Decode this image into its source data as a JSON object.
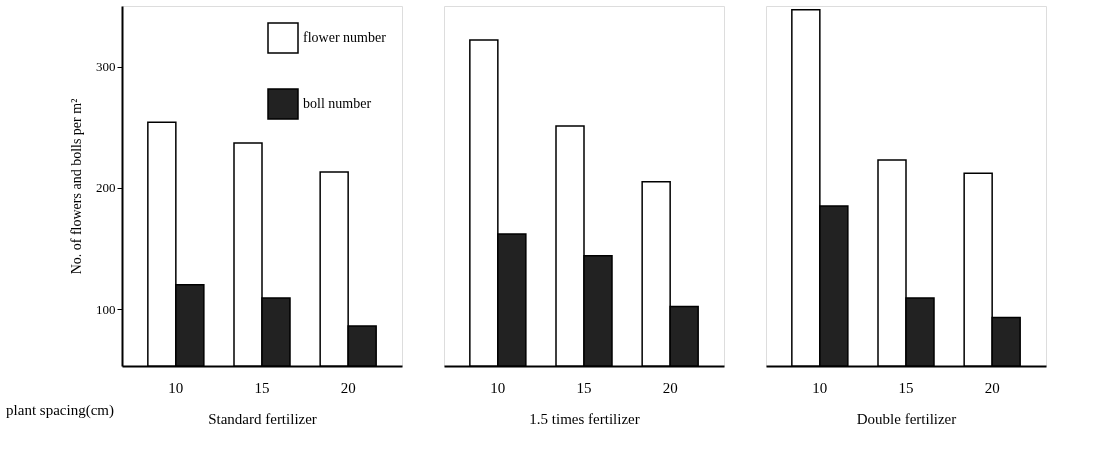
{
  "chart_data": [
    {
      "type": "bar",
      "xlabel": "Standard fertilizer",
      "ylabel": "No. of flowers and bolls per m²",
      "categories": [
        "10",
        "15",
        "20"
      ],
      "series": [
        {
          "name": "flower number",
          "color": "#ffffff",
          "values": [
            254,
            237,
            213
          ]
        },
        {
          "name": "boll number",
          "color": "#222222",
          "values": [
            120,
            109,
            86
          ]
        }
      ],
      "ylim": [
        53,
        350
      ],
      "yticks": [
        100,
        200,
        300
      ],
      "grid": false,
      "legend": "top right",
      "annotations": [
        "plant spacing(cm)"
      ]
    },
    {
      "type": "bar",
      "xlabel": "1.5 times fertilizer",
      "categories": [
        "10",
        "15",
        "20"
      ],
      "series": [
        {
          "color": "#ffffff",
          "values": [
            322,
            251,
            205
          ]
        },
        {
          "color": "#222222",
          "values": [
            162,
            144,
            102
          ]
        }
      ],
      "ylim": [
        53,
        350
      ],
      "grid": false,
      "tick_labels": "x"
    },
    {
      "type": "bar",
      "xlabel": "Double fertilizer",
      "categories": [
        "10",
        "15",
        "20"
      ],
      "series": [
        {
          "color": "#ffffff",
          "values": [
            347,
            223,
            212
          ]
        },
        {
          "color": "#222222",
          "values": [
            185,
            109,
            93
          ]
        }
      ],
      "ylim": [
        53,
        350
      ],
      "grid": false,
      "tick_labels": "x"
    }
  ]
}
